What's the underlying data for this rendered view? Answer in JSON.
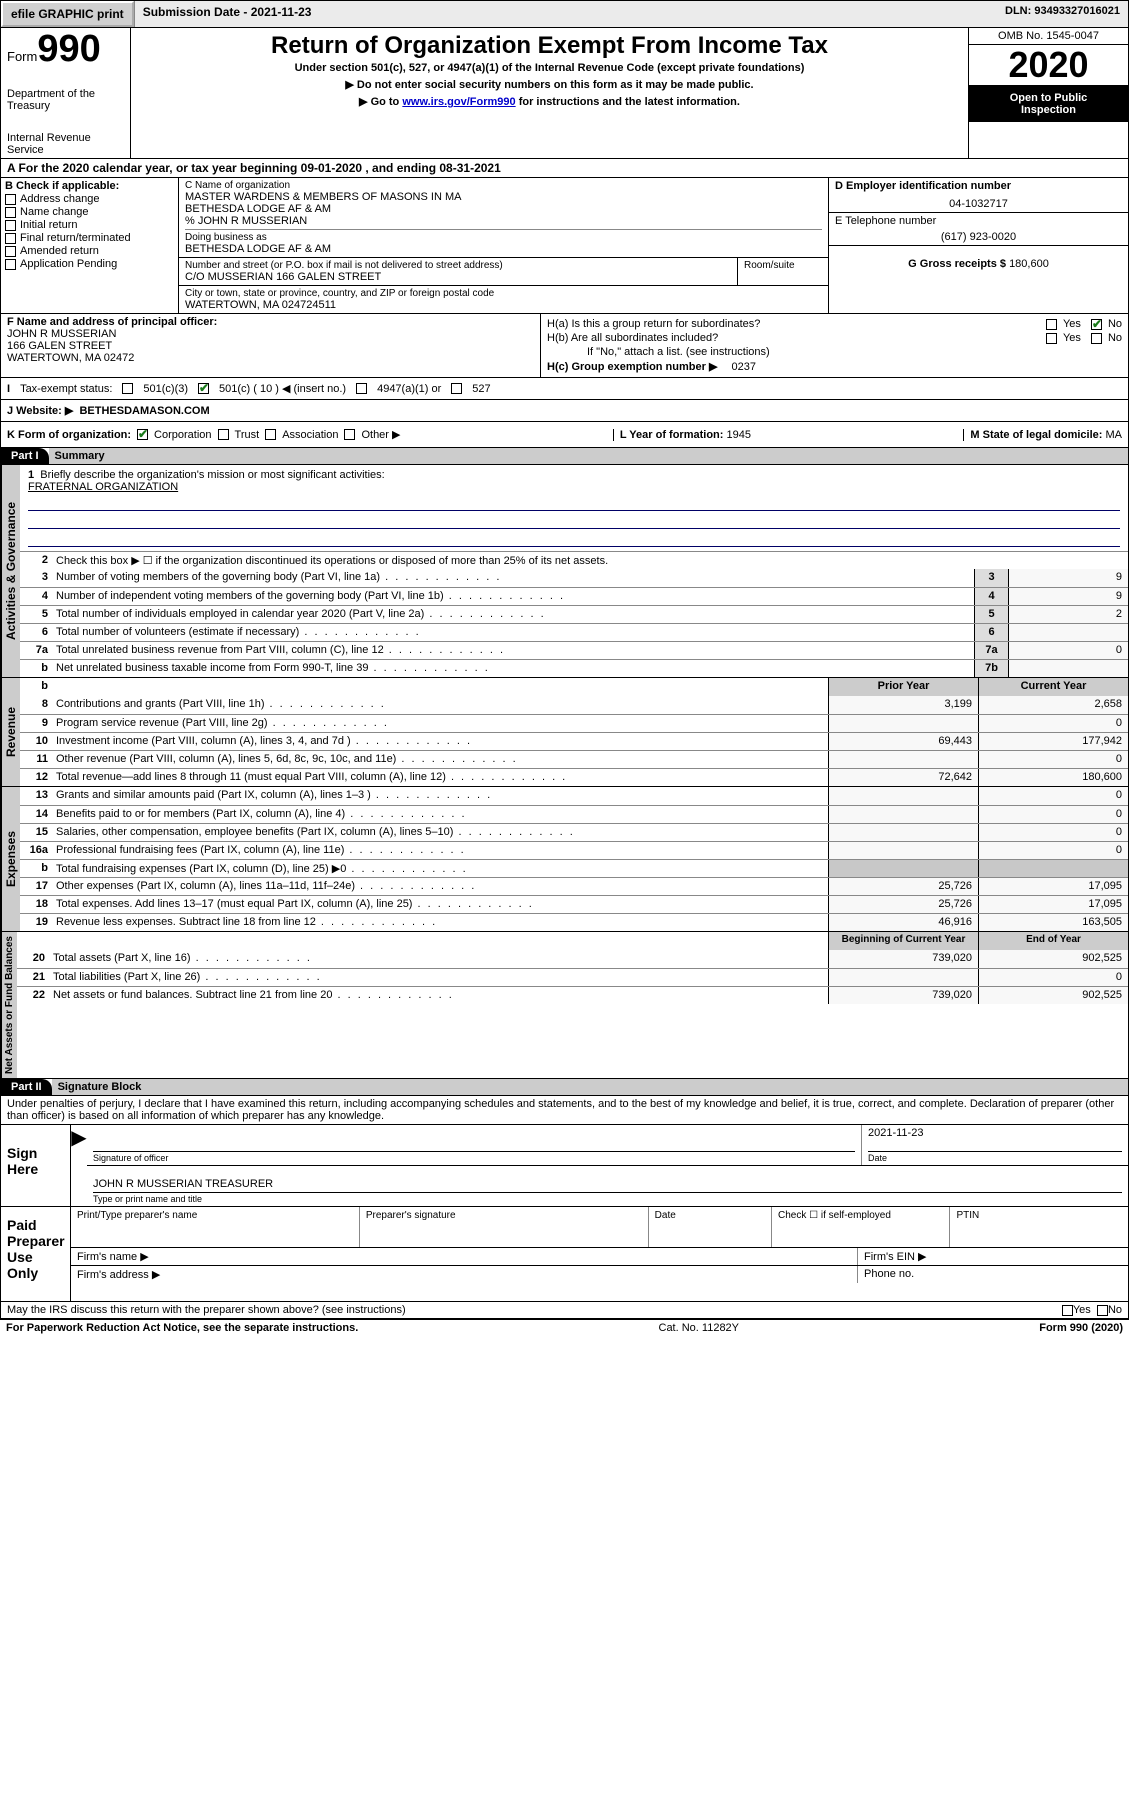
{
  "topbar": {
    "efile": "efile GRAPHIC print",
    "submission_label": "Submission Date - ",
    "submission_date": "2021-11-23",
    "dln_label": "DLN: ",
    "dln": "93493327016021"
  },
  "header": {
    "form_word": "Form",
    "form_number": "990",
    "dept1": "Department of the Treasury",
    "dept2": "Internal Revenue Service",
    "title": "Return of Organization Exempt From Income Tax",
    "subtitle": "Under section 501(c), 527, or 4947(a)(1) of the Internal Revenue Code (except private foundations)",
    "arrow1": "▶ Do not enter social security numbers on this form as it may be made public.",
    "arrow2_pre": "▶ Go to ",
    "arrow2_link": "www.irs.gov/Form990",
    "arrow2_post": " for instructions and the latest information.",
    "omb": "OMB No. 1545-0047",
    "year": "2020",
    "open1": "Open to Public",
    "open2": "Inspection"
  },
  "a_line": "A For the 2020 calendar year, or tax year beginning 09-01-2020   , and ending 08-31-2021",
  "b": {
    "label": "B Check if applicable:",
    "items": [
      "Address change",
      "Name change",
      "Initial return",
      "Final return/terminated",
      "Amended return",
      "Application Pending"
    ]
  },
  "c": {
    "name_label": "C Name of organization",
    "name1": "MASTER WARDENS & MEMBERS OF MASONS IN MA",
    "name2": "BETHESDA LODGE AF & AM",
    "name3": "% JOHN R MUSSERIAN",
    "dba_label": "Doing business as",
    "dba": "BETHESDA LODGE AF & AM",
    "street_label": "Number and street (or P.O. box if mail is not delivered to street address)",
    "room_label": "Room/suite",
    "street": "C/O MUSSERIAN 166 GALEN STREET",
    "city_label": "City or town, state or province, country, and ZIP or foreign postal code",
    "city": "WATERTOWN, MA  024724511"
  },
  "d": {
    "label": "D Employer identification number",
    "value": "04-1032717"
  },
  "e": {
    "label": "E Telephone number",
    "value": "(617) 923-0020"
  },
  "g": {
    "label": "G Gross receipts $ ",
    "value": "180,600"
  },
  "f": {
    "label": "F  Name and address of principal officer:",
    "line1": "JOHN R MUSSERIAN",
    "line2": "166 GALEN STREET",
    "line3": "WATERTOWN, MA  02472"
  },
  "h": {
    "a": "H(a)  Is this a group return for subordinates?",
    "b": "H(b)  Are all subordinates included?",
    "b_note": "If \"No,\" attach a list. (see instructions)",
    "c": "H(c)  Group exemption number ▶",
    "c_val": "0237",
    "yes": "Yes",
    "no": "No"
  },
  "i": {
    "label": "Tax-exempt status:",
    "c3": "501(c)(3)",
    "c10": "501(c) ( 10 ) ◀ (insert no.)",
    "a49": "4947(a)(1) or",
    "s527": "527"
  },
  "j": {
    "label": "J   Website: ▶",
    "value": "BETHESDAMASON.COM"
  },
  "k": {
    "label": "K Form of organization:",
    "opts": [
      "Corporation",
      "Trust",
      "Association",
      "Other ▶"
    ],
    "l": "L Year of formation: ",
    "l_val": "1945",
    "m": "M State of legal domicile: ",
    "m_val": "MA"
  },
  "part1": {
    "hdr": "Part I",
    "title": "Summary"
  },
  "summary": {
    "q1": "Briefly describe the organization's mission or most significant activities:",
    "q1_ans": "FRATERNAL ORGANIZATION",
    "q2": "Check this box ▶ ☐  if the organization discontinued its operations or disposed of more than 25% of its net assets.",
    "rows_top": [
      {
        "n": "3",
        "t": "Number of voting members of the governing body (Part VI, line 1a)",
        "box": "3",
        "v": "9"
      },
      {
        "n": "4",
        "t": "Number of independent voting members of the governing body (Part VI, line 1b)",
        "box": "4",
        "v": "9"
      },
      {
        "n": "5",
        "t": "Total number of individuals employed in calendar year 2020 (Part V, line 2a)",
        "box": "5",
        "v": "2"
      },
      {
        "n": "6",
        "t": "Total number of volunteers (estimate if necessary)",
        "box": "6",
        "v": ""
      },
      {
        "n": "7a",
        "t": "Total unrelated business revenue from Part VIII, column (C), line 12",
        "box": "7a",
        "v": "0"
      },
      {
        "n": "b",
        "t": "Net unrelated business taxable income from Form 990-T, line 39",
        "box": "7b",
        "v": ""
      }
    ],
    "col_hdrs": {
      "prior": "Prior Year",
      "current": "Current Year"
    },
    "revenue": [
      {
        "n": "8",
        "t": "Contributions and grants (Part VIII, line 1h)",
        "p": "3,199",
        "c": "2,658"
      },
      {
        "n": "9",
        "t": "Program service revenue (Part VIII, line 2g)",
        "p": "",
        "c": "0"
      },
      {
        "n": "10",
        "t": "Investment income (Part VIII, column (A), lines 3, 4, and 7d )",
        "p": "69,443",
        "c": "177,942"
      },
      {
        "n": "11",
        "t": "Other revenue (Part VIII, column (A), lines 5, 6d, 8c, 9c, 10c, and 11e)",
        "p": "",
        "c": "0"
      },
      {
        "n": "12",
        "t": "Total revenue—add lines 8 through 11 (must equal Part VIII, column (A), line 12)",
        "p": "72,642",
        "c": "180,600"
      }
    ],
    "expenses": [
      {
        "n": "13",
        "t": "Grants and similar amounts paid (Part IX, column (A), lines 1–3 )",
        "p": "",
        "c": "0"
      },
      {
        "n": "14",
        "t": "Benefits paid to or for members (Part IX, column (A), line 4)",
        "p": "",
        "c": "0"
      },
      {
        "n": "15",
        "t": "Salaries, other compensation, employee benefits (Part IX, column (A), lines 5–10)",
        "p": "",
        "c": "0"
      },
      {
        "n": "16a",
        "t": "Professional fundraising fees (Part IX, column (A), line 11e)",
        "p": "",
        "c": "0"
      },
      {
        "n": "b",
        "t": "Total fundraising expenses (Part IX, column (D), line 25) ▶0",
        "p": "shade",
        "c": "shade"
      },
      {
        "n": "17",
        "t": "Other expenses (Part IX, column (A), lines 11a–11d, 11f–24e)",
        "p": "25,726",
        "c": "17,095"
      },
      {
        "n": "18",
        "t": "Total expenses. Add lines 13–17 (must equal Part IX, column (A), line 25)",
        "p": "25,726",
        "c": "17,095"
      },
      {
        "n": "19",
        "t": "Revenue less expenses. Subtract line 18 from line 12",
        "p": "46,916",
        "c": "163,505"
      }
    ],
    "na_hdrs": {
      "beg": "Beginning of Current Year",
      "end": "End of Year"
    },
    "netassets": [
      {
        "n": "20",
        "t": "Total assets (Part X, line 16)",
        "p": "739,020",
        "c": "902,525"
      },
      {
        "n": "21",
        "t": "Total liabilities (Part X, line 26)",
        "p": "",
        "c": "0"
      },
      {
        "n": "22",
        "t": "Net assets or fund balances. Subtract line 21 from line 20",
        "p": "739,020",
        "c": "902,525"
      }
    ]
  },
  "vlabels": {
    "gov": "Activities & Governance",
    "rev": "Revenue",
    "exp": "Expenses",
    "na": "Net Assets or Fund Balances"
  },
  "part2": {
    "hdr": "Part II",
    "title": "Signature Block"
  },
  "penalty": "Under penalties of perjury, I declare that I have examined this return, including accompanying schedules and statements, and to the best of my knowledge and belief, it is true, correct, and complete. Declaration of preparer (other than officer) is based on all information of which preparer has any knowledge.",
  "sign": {
    "left": "Sign Here",
    "sig_officer": "Signature of officer",
    "date_lbl": "Date",
    "date_val": "2021-11-23",
    "name": "JOHN R MUSSERIAN  TREASURER",
    "name_lbl": "Type or print name and title"
  },
  "paid": {
    "left1": "Paid",
    "left2": "Preparer",
    "left3": "Use Only",
    "h1": "Print/Type preparer's name",
    "h2": "Preparer's signature",
    "h3": "Date",
    "chk": "Check ☐ if self-employed",
    "ptin": "PTIN",
    "firm_name": "Firm's name   ▶",
    "firm_ein": "Firm's EIN ▶",
    "firm_addr": "Firm's address ▶",
    "phone": "Phone no."
  },
  "discuss": {
    "t": "May the IRS discuss this return with the preparer shown above? (see instructions)",
    "yes": "Yes",
    "no": "No"
  },
  "footer": {
    "left": "For Paperwork Reduction Act Notice, see the separate instructions.",
    "mid": "Cat. No. 11282Y",
    "right": "Form 990 (2020)"
  }
}
